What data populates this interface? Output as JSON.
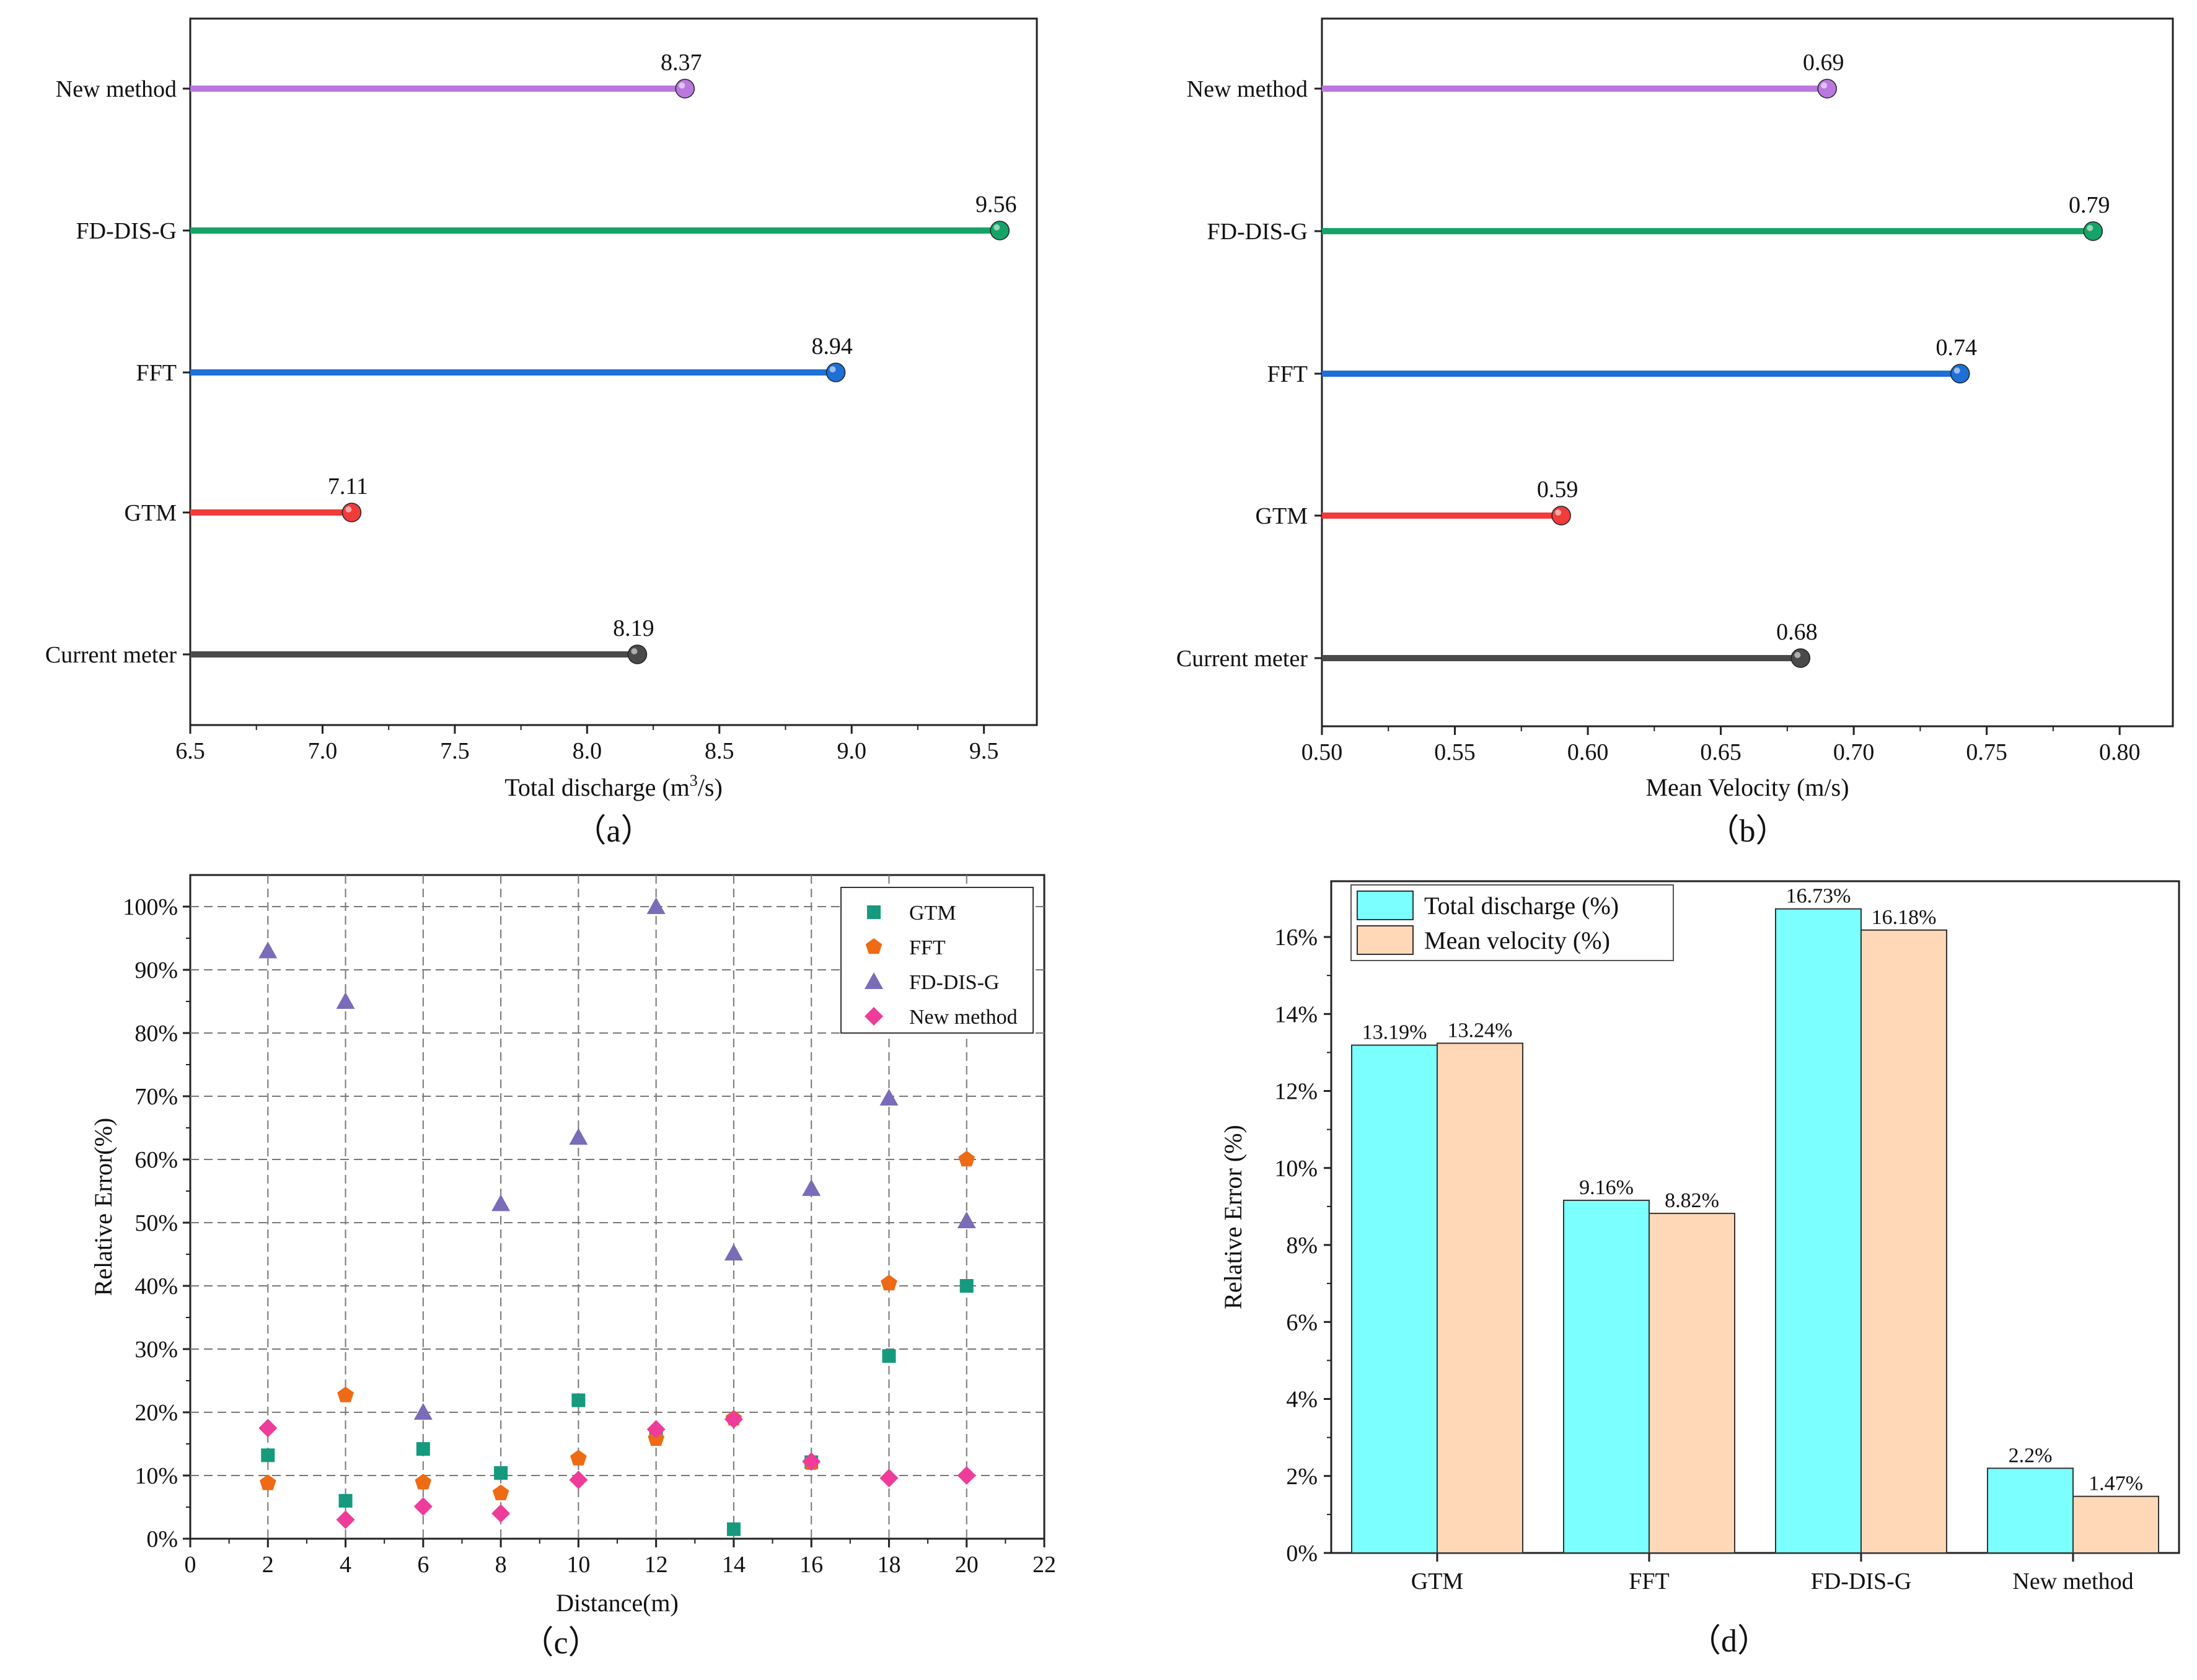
{
  "colors": {
    "new_method": "#BA78DE",
    "fd_dis_g": "#15A367",
    "fft": "#1E6FD6",
    "gtm": "#F23B3B",
    "current_meter": "#4A4A4A",
    "gtm_marker": "#159A7E",
    "fft_marker": "#EF6A14",
    "fdisg_marker": "#7A6CB8",
    "new_marker": "#EE3C9A",
    "bar_total": "#7BFFFF",
    "bar_velocity": "#FFD8B7"
  },
  "chart_data": [
    {
      "type": "lollipop",
      "panel_label": "（a）",
      "title": "",
      "xlabel": "Total discharge (m",
      "xlabel_sup": "3",
      "xlabel_end": "/s)",
      "ylabel": "",
      "xlim": [
        6.5,
        9.7
      ],
      "xticks": [
        6.5,
        7.0,
        7.5,
        8.0,
        8.5,
        9.0,
        9.5
      ],
      "xtick_labels": [
        "6.5",
        "7.0",
        "7.5",
        "8.0",
        "8.5",
        "9.0",
        "9.5"
      ],
      "categories": [
        "New method",
        "FD-DIS-G",
        "FFT",
        "GTM",
        "Current meter"
      ],
      "values": [
        8.37,
        9.56,
        8.94,
        7.11,
        8.19
      ],
      "value_labels": [
        "8.37",
        "9.56",
        "8.94",
        "7.11",
        "8.19"
      ],
      "color_keys": [
        "new_method",
        "fd_dis_g",
        "fft",
        "gtm",
        "current_meter"
      ]
    },
    {
      "type": "lollipop",
      "panel_label": "（b）",
      "title": "",
      "xlabel": "Mean Velocity (m/s)",
      "ylabel": "",
      "xlim": [
        0.5,
        0.82
      ],
      "xticks": [
        0.5,
        0.55,
        0.6,
        0.65,
        0.7,
        0.75,
        0.8
      ],
      "xtick_labels": [
        "0.50",
        "0.55",
        "0.60",
        "0.65",
        "0.70",
        "0.75",
        "0.80"
      ],
      "categories": [
        "New method",
        "FD-DIS-G",
        "FFT",
        "GTM",
        "Current meter"
      ],
      "values": [
        0.69,
        0.79,
        0.74,
        0.59,
        0.68
      ],
      "value_labels": [
        "0.69",
        "0.79",
        "0.74",
        "0.59",
        "0.68"
      ],
      "color_keys": [
        "new_method",
        "fd_dis_g",
        "fft",
        "gtm",
        "current_meter"
      ]
    },
    {
      "type": "scatter",
      "panel_label": "（c）",
      "title": "",
      "xlabel": "Distance(m)",
      "ylabel": "Relative Error(%)",
      "xlim": [
        0,
        22
      ],
      "ylim": [
        0,
        100
      ],
      "xticks": [
        0,
        2,
        4,
        6,
        8,
        10,
        12,
        14,
        16,
        18,
        20,
        22
      ],
      "yticks": [
        0,
        10,
        20,
        30,
        40,
        50,
        60,
        70,
        80,
        90,
        100
      ],
      "ytick_suffix": "%",
      "grid": true,
      "legend_position": "top-right",
      "x": [
        2,
        4,
        6,
        8,
        10,
        12,
        14,
        16,
        18,
        20
      ],
      "series": [
        {
          "name": "GTM",
          "marker": "square",
          "color_key": "gtm_marker",
          "values": [
            13.2,
            6.0,
            14.2,
            10.4,
            21.9,
            16.5,
            1.5,
            12.1,
            28.9,
            40.0
          ]
        },
        {
          "name": "FFT",
          "marker": "pentagon",
          "color_key": "fft_marker",
          "values": [
            8.8,
            22.7,
            8.9,
            7.2,
            12.7,
            15.8,
            19.0,
            12.0,
            40.4,
            60.0
          ]
        },
        {
          "name": "FD-DIS-G",
          "marker": "triangle",
          "color_key": "fdisg_marker",
          "values": [
            93.0,
            85.0,
            20.0,
            53.0,
            63.5,
            100.0,
            45.2,
            55.4,
            69.7,
            50.3
          ]
        },
        {
          "name": "New method",
          "marker": "diamond",
          "color_key": "new_marker",
          "values": [
            17.5,
            3.0,
            5.1,
            4.0,
            9.3,
            17.3,
            18.9,
            12.2,
            9.6,
            10.0
          ]
        }
      ]
    },
    {
      "type": "bar",
      "panel_label": "（d）",
      "title": "",
      "xlabel": "",
      "ylabel": "Relative Error (%)",
      "ylim": [
        0,
        17.5
      ],
      "yticks": [
        0,
        2,
        4,
        6,
        8,
        10,
        12,
        14,
        16
      ],
      "ytick_suffix": "%",
      "legend_position": "top-left",
      "categories": [
        "GTM",
        "FFT",
        "FD-DIS-G",
        "New method"
      ],
      "series": [
        {
          "name": "Total  discharge (%)",
          "color_key": "bar_total",
          "values": [
            13.19,
            9.16,
            16.73,
            2.2
          ],
          "labels": [
            "13.19%",
            "9.16%",
            "16.73%",
            "2.2%"
          ]
        },
        {
          "name": "Mean velocity (%)",
          "color_key": "bar_velocity",
          "values": [
            13.24,
            8.82,
            16.18,
            1.47
          ],
          "labels": [
            "13.24%",
            "8.82%",
            "16.18%",
            "1.47%"
          ]
        }
      ]
    }
  ]
}
